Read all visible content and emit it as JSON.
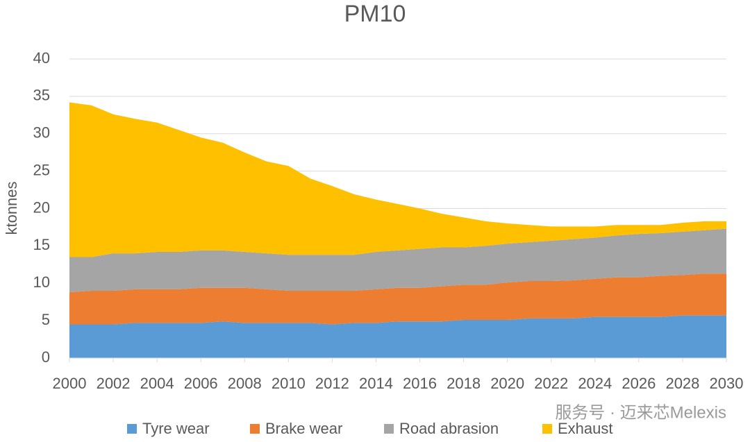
{
  "chart_data": {
    "type": "stacked_area",
    "title": "PM10",
    "y_label": "ktonnes",
    "x": [
      2000,
      2001,
      2002,
      2003,
      2004,
      2005,
      2006,
      2007,
      2008,
      2009,
      2010,
      2011,
      2012,
      2013,
      2014,
      2015,
      2016,
      2017,
      2018,
      2019,
      2020,
      2021,
      2022,
      2023,
      2024,
      2025,
      2026,
      2027,
      2028,
      2029,
      2030
    ],
    "series": [
      {
        "name": "Tyre wear",
        "color": "#5b9bd5",
        "values": [
          4.5,
          4.5,
          4.5,
          4.7,
          4.7,
          4.7,
          4.7,
          4.9,
          4.7,
          4.7,
          4.7,
          4.7,
          4.5,
          4.7,
          4.7,
          4.9,
          4.9,
          4.9,
          5.1,
          5.1,
          5.1,
          5.3,
          5.3,
          5.3,
          5.5,
          5.5,
          5.5,
          5.5,
          5.7,
          5.7,
          5.7
        ]
      },
      {
        "name": "Brake wear",
        "color": "#ed7d31",
        "values": [
          4.3,
          4.5,
          4.5,
          4.5,
          4.5,
          4.5,
          4.7,
          4.5,
          4.7,
          4.5,
          4.3,
          4.3,
          4.5,
          4.3,
          4.5,
          4.5,
          4.5,
          4.7,
          4.7,
          4.7,
          5.0,
          5.0,
          5.0,
          5.1,
          5.1,
          5.3,
          5.3,
          5.5,
          5.4,
          5.6,
          5.6
        ]
      },
      {
        "name": "Road abrasion",
        "color": "#a5a5a5",
        "values": [
          4.7,
          4.5,
          5.0,
          4.8,
          5.0,
          5.0,
          5.0,
          5.0,
          4.8,
          4.8,
          4.8,
          4.8,
          4.8,
          4.8,
          5.0,
          5.0,
          5.2,
          5.2,
          5.0,
          5.2,
          5.2,
          5.2,
          5.4,
          5.5,
          5.5,
          5.6,
          5.8,
          5.7,
          5.8,
          5.8,
          6.0
        ]
      },
      {
        "name": "Exhaust",
        "color": "#ffc000",
        "values": [
          20.7,
          20.3,
          18.6,
          18.0,
          17.3,
          16.3,
          15.1,
          14.4,
          13.3,
          12.3,
          11.9,
          10.2,
          9.2,
          8.1,
          7.0,
          6.2,
          5.4,
          4.5,
          4.0,
          3.3,
          2.7,
          2.3,
          1.9,
          1.7,
          1.5,
          1.4,
          1.2,
          1.1,
          1.2,
          1.2,
          1.0
        ]
      }
    ],
    "xlim": [
      2000,
      2030
    ],
    "xticks": [
      2000,
      2002,
      2004,
      2006,
      2008,
      2010,
      2012,
      2014,
      2016,
      2018,
      2020,
      2022,
      2024,
      2026,
      2028,
      2030
    ],
    "ylim": [
      0,
      40
    ],
    "yticks": [
      0,
      5,
      10,
      15,
      20,
      25,
      30,
      35,
      40
    ],
    "grid": true,
    "legend": "bottom",
    "watermark": "服务号 · 迈来芯Melexis"
  }
}
